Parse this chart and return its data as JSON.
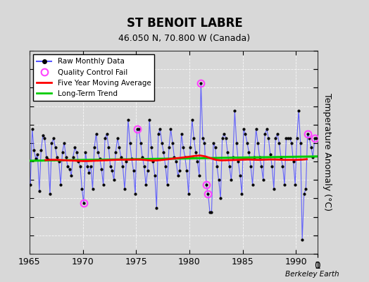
{
  "title": "ST BENOIT LABRE",
  "subtitle": "46.050 N, 70.800 W (Canada)",
  "ylabel": "Temperature Anomaly (°C)",
  "credit": "Berkeley Earth",
  "xlim": [
    1965,
    1992
  ],
  "ylim": [
    -10,
    12
  ],
  "yticks": [
    -10,
    -8,
    -6,
    -4,
    -2,
    0,
    2,
    4,
    6,
    8,
    10,
    12
  ],
  "xticks": [
    1965,
    1970,
    1975,
    1980,
    1985,
    1990
  ],
  "bg_color": "#d8d8d8",
  "plot_bg_color": "#d8d8d8",
  "raw_color": "#5555ff",
  "dot_color": "#000000",
  "moving_avg_color": "#ff0000",
  "trend_color": "#00cc00",
  "qc_fail_color": "#ff44ff",
  "raw_data": [
    [
      1965.08,
      -2.5
    ],
    [
      1965.25,
      3.5
    ],
    [
      1965.42,
      1.2
    ],
    [
      1965.58,
      0.3
    ],
    [
      1965.75,
      0.8
    ],
    [
      1965.92,
      -3.2
    ],
    [
      1966.08,
      1.2
    ],
    [
      1966.25,
      2.8
    ],
    [
      1966.42,
      2.5
    ],
    [
      1966.58,
      0.5
    ],
    [
      1966.75,
      0.2
    ],
    [
      1966.92,
      -3.5
    ],
    [
      1967.08,
      2.0
    ],
    [
      1967.25,
      2.5
    ],
    [
      1967.42,
      1.5
    ],
    [
      1967.58,
      0.5
    ],
    [
      1967.75,
      0.0
    ],
    [
      1967.92,
      -2.5
    ],
    [
      1968.08,
      1.0
    ],
    [
      1968.25,
      2.0
    ],
    [
      1968.42,
      0.5
    ],
    [
      1968.58,
      -0.5
    ],
    [
      1968.75,
      -0.8
    ],
    [
      1968.92,
      -1.5
    ],
    [
      1969.08,
      0.5
    ],
    [
      1969.25,
      1.5
    ],
    [
      1969.42,
      1.0
    ],
    [
      1969.58,
      0.0
    ],
    [
      1969.75,
      -0.5
    ],
    [
      1969.92,
      -3.0
    ],
    [
      1970.08,
      -4.5
    ],
    [
      1970.25,
      1.0
    ],
    [
      1970.42,
      -0.5
    ],
    [
      1970.58,
      -1.2
    ],
    [
      1970.75,
      -0.5
    ],
    [
      1970.92,
      -3.0
    ],
    [
      1971.08,
      1.5
    ],
    [
      1971.25,
      3.0
    ],
    [
      1971.42,
      1.0
    ],
    [
      1971.58,
      0.3
    ],
    [
      1971.75,
      -0.8
    ],
    [
      1971.92,
      -2.5
    ],
    [
      1972.08,
      2.5
    ],
    [
      1972.25,
      3.0
    ],
    [
      1972.42,
      1.5
    ],
    [
      1972.58,
      -0.5
    ],
    [
      1972.75,
      -1.0
    ],
    [
      1972.92,
      -2.0
    ],
    [
      1973.08,
      1.0
    ],
    [
      1973.25,
      2.5
    ],
    [
      1973.42,
      1.5
    ],
    [
      1973.58,
      0.5
    ],
    [
      1973.75,
      -0.5
    ],
    [
      1973.92,
      -3.0
    ],
    [
      1974.08,
      0.0
    ],
    [
      1974.25,
      4.5
    ],
    [
      1974.42,
      2.0
    ],
    [
      1974.58,
      0.3
    ],
    [
      1974.75,
      -1.0
    ],
    [
      1974.92,
      -3.5
    ],
    [
      1975.08,
      3.5
    ],
    [
      1975.25,
      3.5
    ],
    [
      1975.42,
      2.0
    ],
    [
      1975.58,
      0.5
    ],
    [
      1975.75,
      -0.5
    ],
    [
      1975.92,
      -2.5
    ],
    [
      1976.08,
      -1.0
    ],
    [
      1976.25,
      4.5
    ],
    [
      1976.42,
      1.5
    ],
    [
      1976.58,
      0.0
    ],
    [
      1976.75,
      -1.5
    ],
    [
      1976.92,
      -5.0
    ],
    [
      1977.08,
      3.0
    ],
    [
      1977.25,
      3.5
    ],
    [
      1977.42,
      2.0
    ],
    [
      1977.58,
      1.0
    ],
    [
      1977.75,
      -0.5
    ],
    [
      1977.92,
      -2.5
    ],
    [
      1978.08,
      1.5
    ],
    [
      1978.25,
      3.5
    ],
    [
      1978.42,
      2.0
    ],
    [
      1978.58,
      0.5
    ],
    [
      1978.75,
      0.0
    ],
    [
      1978.92,
      -1.5
    ],
    [
      1979.08,
      -1.0
    ],
    [
      1979.25,
      3.0
    ],
    [
      1979.42,
      1.5
    ],
    [
      1979.58,
      0.5
    ],
    [
      1979.75,
      -1.0
    ],
    [
      1979.92,
      -3.5
    ],
    [
      1980.08,
      1.5
    ],
    [
      1980.25,
      4.5
    ],
    [
      1980.42,
      2.5
    ],
    [
      1980.58,
      1.0
    ],
    [
      1980.75,
      0.0
    ],
    [
      1980.92,
      -1.5
    ],
    [
      1981.08,
      8.5
    ],
    [
      1981.25,
      2.5
    ],
    [
      1981.42,
      2.0
    ],
    [
      1981.58,
      -2.5
    ],
    [
      1981.75,
      -3.5
    ],
    [
      1981.92,
      -5.5
    ],
    [
      1982.08,
      -5.5
    ],
    [
      1982.25,
      2.0
    ],
    [
      1982.42,
      1.5
    ],
    [
      1982.58,
      -0.5
    ],
    [
      1982.75,
      -2.0
    ],
    [
      1982.92,
      -4.0
    ],
    [
      1983.08,
      2.5
    ],
    [
      1983.25,
      3.0
    ],
    [
      1983.42,
      2.5
    ],
    [
      1983.58,
      1.0
    ],
    [
      1983.75,
      -0.5
    ],
    [
      1983.92,
      -2.0
    ],
    [
      1984.08,
      0.5
    ],
    [
      1984.25,
      5.5
    ],
    [
      1984.42,
      2.0
    ],
    [
      1984.58,
      0.0
    ],
    [
      1984.75,
      -1.5
    ],
    [
      1984.92,
      -3.5
    ],
    [
      1985.08,
      3.5
    ],
    [
      1985.25,
      3.0
    ],
    [
      1985.42,
      2.0
    ],
    [
      1985.58,
      1.0
    ],
    [
      1985.75,
      -0.5
    ],
    [
      1985.92,
      -2.5
    ],
    [
      1986.08,
      0.5
    ],
    [
      1986.25,
      3.5
    ],
    [
      1986.42,
      2.0
    ],
    [
      1986.58,
      0.5
    ],
    [
      1986.75,
      -0.5
    ],
    [
      1986.92,
      -2.0
    ],
    [
      1987.08,
      3.0
    ],
    [
      1987.25,
      3.5
    ],
    [
      1987.42,
      2.5
    ],
    [
      1987.58,
      0.8
    ],
    [
      1987.75,
      -0.5
    ],
    [
      1987.92,
      -3.0
    ],
    [
      1988.08,
      2.5
    ],
    [
      1988.25,
      3.0
    ],
    [
      1988.42,
      2.0
    ],
    [
      1988.58,
      0.5
    ],
    [
      1988.75,
      -0.5
    ],
    [
      1988.92,
      -2.5
    ],
    [
      1989.08,
      2.5
    ],
    [
      1989.25,
      2.5
    ],
    [
      1989.42,
      2.5
    ],
    [
      1989.58,
      2.0
    ],
    [
      1989.75,
      0.0
    ],
    [
      1989.92,
      -2.5
    ],
    [
      1990.08,
      2.5
    ],
    [
      1990.25,
      5.5
    ],
    [
      1990.42,
      2.0
    ],
    [
      1990.58,
      -8.5
    ],
    [
      1990.75,
      -3.5
    ],
    [
      1990.92,
      -3.0
    ],
    [
      1991.08,
      3.0
    ],
    [
      1991.25,
      2.5
    ],
    [
      1991.42,
      1.5
    ],
    [
      1991.58,
      0.5
    ],
    [
      1991.75,
      2.5
    ],
    [
      1991.92,
      2.5
    ]
  ],
  "qc_fail_points": [
    [
      1970.08,
      -4.5
    ],
    [
      1975.08,
      3.5
    ],
    [
      1981.08,
      8.5
    ],
    [
      1981.58,
      -2.5
    ],
    [
      1981.75,
      -3.5
    ],
    [
      1991.08,
      3.0
    ],
    [
      1991.75,
      2.5
    ]
  ],
  "moving_avg": [
    [
      1966.5,
      0.15
    ],
    [
      1967.0,
      0.18
    ],
    [
      1967.5,
      0.18
    ],
    [
      1968.0,
      0.15
    ],
    [
      1968.5,
      0.12
    ],
    [
      1969.0,
      0.1
    ],
    [
      1969.5,
      0.08
    ],
    [
      1970.0,
      0.05
    ],
    [
      1970.5,
      0.05
    ],
    [
      1971.0,
      0.08
    ],
    [
      1971.5,
      0.1
    ],
    [
      1972.0,
      0.12
    ],
    [
      1972.5,
      0.15
    ],
    [
      1973.0,
      0.18
    ],
    [
      1973.5,
      0.2
    ],
    [
      1974.0,
      0.2
    ],
    [
      1974.5,
      0.2
    ],
    [
      1975.0,
      0.22
    ],
    [
      1975.5,
      0.2
    ],
    [
      1976.0,
      0.15
    ],
    [
      1976.5,
      0.1
    ],
    [
      1977.0,
      0.12
    ],
    [
      1977.5,
      0.18
    ],
    [
      1978.0,
      0.25
    ],
    [
      1978.5,
      0.32
    ],
    [
      1979.0,
      0.38
    ],
    [
      1979.5,
      0.45
    ],
    [
      1980.0,
      0.52
    ],
    [
      1980.5,
      0.6
    ],
    [
      1981.0,
      0.65
    ],
    [
      1981.5,
      0.55
    ],
    [
      1982.0,
      0.35
    ],
    [
      1982.5,
      0.18
    ],
    [
      1983.0,
      0.12
    ],
    [
      1983.5,
      0.14
    ],
    [
      1984.0,
      0.16
    ],
    [
      1984.5,
      0.18
    ],
    [
      1985.0,
      0.2
    ],
    [
      1985.5,
      0.22
    ],
    [
      1986.0,
      0.2
    ],
    [
      1986.5,
      0.18
    ],
    [
      1987.0,
      0.2
    ],
    [
      1987.5,
      0.22
    ],
    [
      1988.0,
      0.22
    ],
    [
      1988.5,
      0.2
    ],
    [
      1989.0,
      0.18
    ],
    [
      1989.5,
      0.18
    ],
    [
      1990.0,
      0.18
    ],
    [
      1990.5,
      0.2
    ],
    [
      1991.0,
      0.25
    ]
  ],
  "trend_x": [
    1965,
    1992
  ],
  "trend_y": [
    0.08,
    0.55
  ]
}
